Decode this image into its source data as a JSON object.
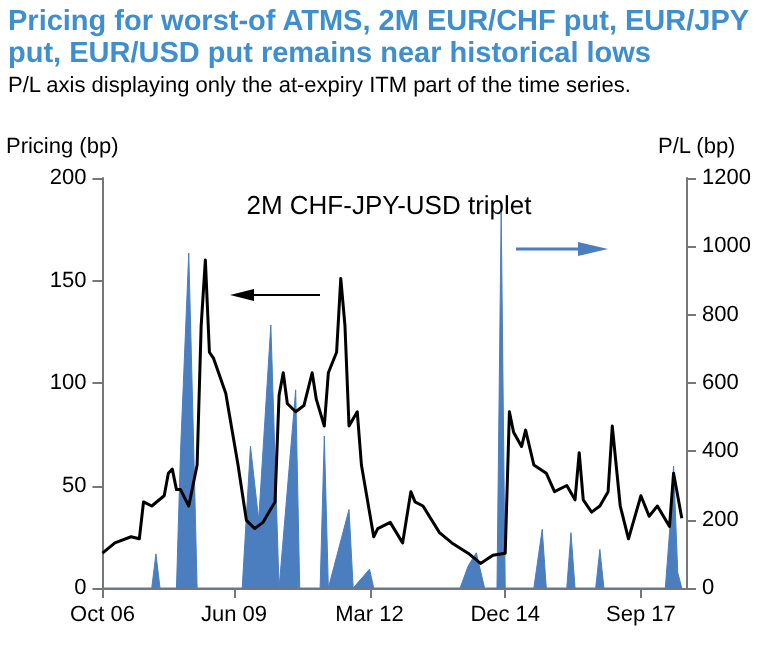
{
  "chart_data": {
    "type": "line",
    "title": "Pricing for worst-of ATMS, 2M EUR/CHF put, EUR/JPY put, EUR/USD put remains near historical lows",
    "subtitle": "P/L axis displaying only the at-expiry ITM part of the time series.",
    "ylabel": "Pricing (bp)",
    "y2label": "P/L (bp)",
    "annotations": [
      "2M CHF-JPY-USD triplet"
    ],
    "x": [
      "2006-10",
      "2007-01",
      "2007-05",
      "2007-07",
      "2007-08",
      "2007-10",
      "2008-01",
      "2008-02",
      "2008-03",
      "2008-04",
      "2008-05",
      "2008-07",
      "2008-09",
      "2008-10",
      "2008-11",
      "2008-12",
      "2009-01",
      "2009-04",
      "2009-07",
      "2009-09",
      "2009-11",
      "2010-01",
      "2010-04",
      "2010-05",
      "2010-06",
      "2010-07",
      "2010-09",
      "2010-11",
      "2011-01",
      "2011-02",
      "2011-04",
      "2011-05",
      "2011-07",
      "2011-08",
      "2011-09",
      "2011-10",
      "2011-12",
      "2012-01",
      "2012-04",
      "2012-05",
      "2012-08",
      "2012-11",
      "2013-01",
      "2013-02",
      "2013-04",
      "2013-08",
      "2013-11",
      "2014-03",
      "2014-06",
      "2014-09",
      "2014-12",
      "2015-01",
      "2015-02",
      "2015-04",
      "2015-05",
      "2015-07",
      "2015-10",
      "2015-12",
      "2016-03",
      "2016-05",
      "2016-06",
      "2016-07",
      "2016-09",
      "2016-11",
      "2017-01",
      "2017-02",
      "2017-04",
      "2017-06",
      "2017-09",
      "2017-11",
      "2018-01",
      "2018-04",
      "2018-05",
      "2018-07"
    ],
    "series": [
      {
        "type": "line",
        "color": "#000000",
        "values": [
          17,
          22,
          25,
          24,
          42,
          40,
          45,
          56,
          58,
          48,
          48,
          40,
          60,
          128,
          160,
          115,
          112,
          95,
          60,
          33,
          29,
          32,
          42,
          94,
          105,
          90,
          86,
          89,
          105,
          92,
          79,
          105,
          115,
          151,
          128,
          79,
          86,
          60,
          25,
          29,
          32,
          22,
          47,
          42,
          40,
          27,
          22,
          17,
          12,
          16,
          17,
          86,
          76,
          69,
          77,
          60,
          56,
          47,
          50,
          43,
          66,
          43,
          37,
          40,
          47,
          79,
          40,
          24,
          45,
          35,
          40,
          30,
          56,
          34
        ]
      },
      {
        "type": "area",
        "axis": "y2",
        "color": "#4a7ebf",
        "x": [
          "2006-10",
          "2007-10",
          "2007-11",
          "2007-12",
          "2008-04",
          "2008-05",
          "2008-07",
          "2008-08",
          "2008-09",
          "2009-08",
          "2009-10",
          "2009-12",
          "2010-03",
          "2010-05",
          "2010-09",
          "2010-10",
          "2011-03",
          "2011-04",
          "2011-05",
          "2011-10",
          "2011-11",
          "2012-03",
          "2012-04",
          "2014-01",
          "2014-03",
          "2014-05",
          "2014-07",
          "2014-10",
          "2014-11",
          "2014-12",
          "2015-07",
          "2015-09",
          "2015-10",
          "2016-03",
          "2016-04",
          "2016-05",
          "2016-10",
          "2016-11",
          "2016-12",
          "2018-03",
          "2018-04",
          "2018-05",
          "2018-06",
          "2018-07"
        ],
        "values": [
          0,
          0,
          100,
          0,
          0,
          400,
          980,
          500,
          0,
          0,
          415,
          200,
          770,
          0,
          580,
          0,
          0,
          445,
          0,
          230,
          0,
          55,
          0,
          0,
          64,
          103,
          0,
          0,
          1100,
          0,
          0,
          172,
          0,
          0,
          162,
          0,
          0,
          113,
          0,
          0,
          162,
          357,
          45,
          0
        ]
      }
    ],
    "xlim": [
      "2006-10",
      "2018-08"
    ],
    "xticks": [
      {
        "value": "2006-10",
        "label": "Oct 06"
      },
      {
        "value": "2009-06",
        "label": "Jun 09"
      },
      {
        "value": "2012-03",
        "label": "Mar 12"
      },
      {
        "value": "2014-12",
        "label": "Dec 14"
      },
      {
        "value": "2017-09",
        "label": "Sep 17"
      }
    ],
    "ylim": [
      0,
      200
    ],
    "yticks": [
      0,
      50,
      100,
      150,
      200
    ],
    "y2lim": [
      0,
      1200
    ],
    "y2ticks": [
      0,
      200,
      400,
      600,
      800,
      1000,
      1200
    ],
    "grid": false,
    "marker": "none",
    "line_style": "solid"
  }
}
